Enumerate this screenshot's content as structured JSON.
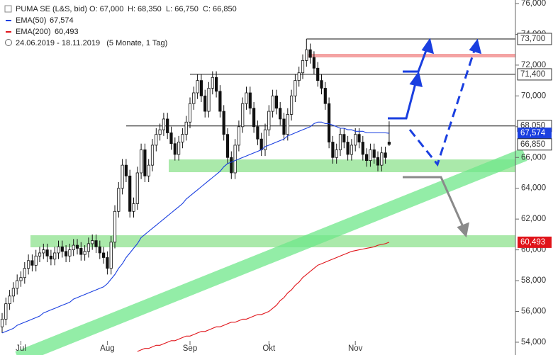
{
  "chart_data": {
    "type": "candlestick",
    "title": "PUMA SE (L&S, bid)",
    "ohlc": [
      "O: 67,000",
      "H: 68,350",
      "L: 66,750",
      "C: 66,850"
    ],
    "range": "24.06.2019 - 18.11.2019   (5 Monate, 1 Tag)",
    "categories": [
      null,
      null,
      null,
      null,
      null,
      "Jul",
      null,
      null,
      null,
      null,
      null,
      null,
      null,
      null,
      null,
      null,
      null,
      null,
      null,
      null,
      null,
      null,
      null,
      null,
      null,
      null,
      null,
      null,
      "Aug",
      null,
      null,
      null,
      null,
      null,
      null,
      null,
      null,
      null,
      null,
      null,
      null,
      null,
      null,
      null,
      null,
      null,
      null,
      null,
      null,
      null,
      "Sep",
      null,
      null,
      null,
      null,
      null,
      null,
      null,
      null,
      null,
      null,
      null,
      null,
      null,
      null,
      null,
      null,
      null,
      null,
      null,
      null,
      "Okt",
      null,
      null,
      null,
      null,
      null,
      null,
      null,
      null,
      null,
      null,
      null,
      null,
      null,
      null,
      null,
      null,
      null,
      null,
      null,
      null,
      null,
      null,
      "Nov",
      null,
      null,
      null,
      null,
      null,
      null,
      null,
      null,
      null
    ],
    "open": [
      55.0,
      55.5,
      56.5,
      57.0,
      57.5,
      58.0,
      58.2,
      58.8,
      59.3,
      59.0,
      59.6,
      59.8,
      60.0,
      59.6,
      59.4,
      59.8,
      60.2,
      59.9,
      59.6,
      60.0,
      60.3,
      60.1,
      59.7,
      59.9,
      60.4,
      60.6,
      60.2,
      59.8,
      59.5,
      58.8,
      60.5,
      62.5,
      64.0,
      65.5,
      64.8,
      62.5,
      63.0,
      65.0,
      66.5,
      64.8,
      65.5,
      66.8,
      67.5,
      67.8,
      68.5,
      67.6,
      66.9,
      66.2,
      67.0,
      67.5,
      68.3,
      69.5,
      70.2,
      71.0,
      70.0,
      69.0,
      70.5,
      71.2,
      70.3,
      69.0,
      67.5,
      66.0,
      65.0,
      66.8,
      68.0,
      69.5,
      70.2,
      69.2,
      68.0,
      67.2,
      66.5,
      67.8,
      69.0,
      70.0,
      69.2,
      68.5,
      67.5,
      68.8,
      70.0,
      71.0,
      71.5,
      72.3,
      73.0,
      72.5,
      71.8,
      71.0,
      70.5,
      69.5,
      67.0,
      66.0,
      66.5,
      67.5,
      67.0,
      66.2,
      66.8,
      67.5,
      67.0,
      66.2,
      65.8,
      66.5,
      66.0,
      65.5,
      66.3,
      67.0
    ],
    "high": [
      55.9,
      56.9,
      57.4,
      57.9,
      58.4,
      58.6,
      59.2,
      59.7,
      59.7,
      60.0,
      60.2,
      60.4,
      60.4,
      60.0,
      60.2,
      60.6,
      60.6,
      60.3,
      60.4,
      60.7,
      60.7,
      60.5,
      60.3,
      60.8,
      61.0,
      61.0,
      60.6,
      60.2,
      59.9,
      60.9,
      62.9,
      64.4,
      65.9,
      65.9,
      65.2,
      63.4,
      65.4,
      66.9,
      66.9,
      65.9,
      67.2,
      67.9,
      68.2,
      68.9,
      68.9,
      68.0,
      67.3,
      67.4,
      67.9,
      68.7,
      69.9,
      70.6,
      71.4,
      71.4,
      70.4,
      70.9,
      71.6,
      71.6,
      70.7,
      69.4,
      67.9,
      66.4,
      67.2,
      68.4,
      69.9,
      70.6,
      70.6,
      69.6,
      68.4,
      67.6,
      68.2,
      69.4,
      70.4,
      70.4,
      69.6,
      68.9,
      69.2,
      70.4,
      71.4,
      71.9,
      72.7,
      73.7,
      73.4,
      72.9,
      72.2,
      71.4,
      70.9,
      69.9,
      67.4,
      66.9,
      67.9,
      67.9,
      67.4,
      67.2,
      67.9,
      67.9,
      67.4,
      66.6,
      66.9,
      66.9,
      66.4,
      66.7,
      66.7,
      68.35
    ],
    "low": [
      54.6,
      55.1,
      56.1,
      56.6,
      57.1,
      57.6,
      57.8,
      58.4,
      58.6,
      58.6,
      59.2,
      59.4,
      59.2,
      59.0,
      59.0,
      59.4,
      59.5,
      59.2,
      59.2,
      59.6,
      59.7,
      59.3,
      59.3,
      59.5,
      60.0,
      59.8,
      59.4,
      59.1,
      58.4,
      58.4,
      60.1,
      62.1,
      63.6,
      64.4,
      62.1,
      62.1,
      62.6,
      64.6,
      64.4,
      64.4,
      65.1,
      66.4,
      67.1,
      67.4,
      67.2,
      66.5,
      65.8,
      65.8,
      66.6,
      67.1,
      67.9,
      69.1,
      69.8,
      69.6,
      68.6,
      68.6,
      70.1,
      69.9,
      68.6,
      67.1,
      65.6,
      64.6,
      64.6,
      66.4,
      67.6,
      69.1,
      68.8,
      67.6,
      66.8,
      66.1,
      66.1,
      67.4,
      68.6,
      68.8,
      68.1,
      67.1,
      67.1,
      68.4,
      69.6,
      70.6,
      71.1,
      71.9,
      72.1,
      71.4,
      70.6,
      70.1,
      69.1,
      66.6,
      65.6,
      65.6,
      66.1,
      66.6,
      65.8,
      65.8,
      66.4,
      66.6,
      65.8,
      65.4,
      65.4,
      65.6,
      65.1,
      65.1,
      65.6,
      66.75
    ],
    "close": [
      55.5,
      56.5,
      57.0,
      57.5,
      58.0,
      58.2,
      58.8,
      59.3,
      59.0,
      59.6,
      59.8,
      60.0,
      59.6,
      59.4,
      59.8,
      60.2,
      59.9,
      59.6,
      60.0,
      60.3,
      60.1,
      59.7,
      59.9,
      60.4,
      60.6,
      60.2,
      59.8,
      59.5,
      58.8,
      60.5,
      62.5,
      64.0,
      65.5,
      64.8,
      62.5,
      63.0,
      65.0,
      66.5,
      64.8,
      65.5,
      66.8,
      67.5,
      67.8,
      68.5,
      67.6,
      66.9,
      66.2,
      67.0,
      67.5,
      68.3,
      69.5,
      70.2,
      71.0,
      70.0,
      69.0,
      70.5,
      71.2,
      70.3,
      69.0,
      67.5,
      66.0,
      65.0,
      66.8,
      68.0,
      69.5,
      70.2,
      69.2,
      68.0,
      67.2,
      66.5,
      67.8,
      69.0,
      70.0,
      69.2,
      68.5,
      67.5,
      68.8,
      70.0,
      71.0,
      71.5,
      72.3,
      73.0,
      72.5,
      71.8,
      71.0,
      70.5,
      69.5,
      67.0,
      66.0,
      66.5,
      67.5,
      67.0,
      66.2,
      66.8,
      67.5,
      67.0,
      66.2,
      65.8,
      66.5,
      66.0,
      65.5,
      66.3,
      66.0,
      66.85
    ],
    "series": [
      {
        "name": "EMA(50)",
        "label": "67,574",
        "color": "#1a3fe0",
        "values": [
          54.6,
          54.7,
          54.8,
          54.9,
          55.1,
          55.2,
          55.3,
          55.4,
          55.5,
          55.6,
          55.7,
          55.9,
          56.0,
          56.1,
          56.2,
          56.3,
          56.4,
          56.5,
          56.6,
          56.8,
          56.9,
          57.0,
          57.1,
          57.2,
          57.3,
          57.4,
          57.5,
          57.6,
          57.8,
          58.1,
          58.4,
          58.8,
          59.1,
          59.5,
          59.8,
          60.1,
          60.4,
          60.8,
          61.0,
          61.2,
          61.4,
          61.6,
          61.8,
          62.0,
          62.2,
          62.4,
          62.6,
          62.8,
          63.0,
          63.3,
          63.5,
          63.7,
          63.9,
          64.1,
          64.3,
          64.5,
          64.7,
          64.9,
          65.1,
          65.4,
          65.6,
          65.7,
          65.8,
          65.9,
          66.0,
          66.1,
          66.2,
          66.3,
          66.4,
          66.5,
          66.7,
          66.8,
          66.9,
          67.0,
          67.1,
          67.2,
          67.4,
          67.5,
          67.6,
          67.7,
          67.8,
          67.9,
          68.0,
          68.2,
          68.3,
          68.3,
          68.2,
          68.2,
          68.1,
          68.0,
          67.9,
          67.9,
          67.8,
          67.8,
          67.7,
          67.7,
          67.7,
          67.6,
          67.6,
          67.6,
          67.6,
          67.6,
          67.6,
          67.574
        ]
      },
      {
        "name": "EMA(200)",
        "label": "60,493",
        "color": "#e0141a",
        "values": [
          null,
          null,
          null,
          null,
          null,
          null,
          null,
          null,
          null,
          null,
          null,
          null,
          null,
          null,
          null,
          null,
          null,
          null,
          null,
          null,
          null,
          null,
          null,
          null,
          null,
          null,
          null,
          null,
          null,
          null,
          null,
          null,
          null,
          null,
          null,
          null,
          53.4,
          53.5,
          53.6,
          53.6,
          53.7,
          53.8,
          53.8,
          53.9,
          54.0,
          54.1,
          54.1,
          54.2,
          54.3,
          54.4,
          54.4,
          54.5,
          54.6,
          54.7,
          54.7,
          54.8,
          54.9,
          55.0,
          55.0,
          55.1,
          55.2,
          55.3,
          55.3,
          55.4,
          55.5,
          55.5,
          55.6,
          55.7,
          55.8,
          55.8,
          55.9,
          56.0,
          56.2,
          56.4,
          56.7,
          56.9,
          57.2,
          57.4,
          57.7,
          57.9,
          58.2,
          58.4,
          58.6,
          58.8,
          59.0,
          59.1,
          59.2,
          59.3,
          59.4,
          59.5,
          59.6,
          59.7,
          59.8,
          59.9,
          59.95,
          60.0,
          60.05,
          60.1,
          60.15,
          60.2,
          60.3,
          60.35,
          60.4,
          60.493
        ]
      }
    ],
    "levels": [
      {
        "value": 73.7,
        "label": "73,700"
      },
      {
        "value": 71.4,
        "label": "71,400"
      },
      {
        "value": 68.05,
        "label": "68,050"
      }
    ],
    "last_label": {
      "value": 66.85,
      "label": "66,850"
    },
    "ylim": [
      53.17,
      76.23
    ],
    "yticks": [
      {
        "value": 54,
        "label": "54,000"
      },
      {
        "value": 56,
        "label": "56,000"
      },
      {
        "value": 58,
        "label": "58,000"
      },
      {
        "value": 60,
        "label": "60,000"
      },
      {
        "value": 62,
        "label": "62,000"
      },
      {
        "value": 64,
        "label": "64,000"
      },
      {
        "value": 66,
        "label": "66,000"
      },
      {
        "value": 68,
        "label": "68,000"
      },
      {
        "value": 70,
        "label": "70,000"
      },
      {
        "value": 72,
        "label": "72,000"
      },
      {
        "value": 74,
        "label": "74,000"
      },
      {
        "value": 76,
        "label": "76,000"
      }
    ]
  }
}
